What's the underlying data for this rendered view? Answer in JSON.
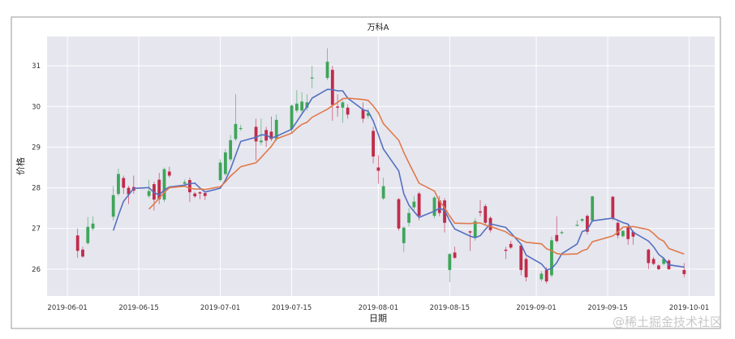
{
  "chart_data": {
    "type": "candlestick",
    "title": "万科A",
    "xlabel": "日期",
    "ylabel": "价格",
    "xlim": [
      "2019-05-28",
      "2019-10-06"
    ],
    "ylim": [
      25.34,
      31.72
    ],
    "yticks": [
      26,
      27,
      28,
      29,
      30,
      31
    ],
    "xticks": [
      "2019-06-01",
      "2019-06-15",
      "2019-07-01",
      "2019-07-15",
      "2019-08-01",
      "2019-08-15",
      "2019-09-01",
      "2019-09-15",
      "2019-10-01"
    ],
    "grid": true,
    "colors": {
      "up": "#3fa55a",
      "down": "#c02c4a",
      "background": "#e6e6ef",
      "grid": "#ffffff"
    },
    "moving_averages": [
      {
        "window": 5,
        "color": "#5470c0"
      },
      {
        "window": 10,
        "color": "#e07a4a"
      }
    ],
    "columns": [
      "date",
      "open",
      "high",
      "low",
      "close"
    ],
    "candles": [
      [
        "2019-06-03",
        26.83,
        27.0,
        26.28,
        26.45
      ],
      [
        "2019-06-04",
        26.48,
        26.55,
        26.28,
        26.31
      ],
      [
        "2019-06-05",
        26.64,
        27.28,
        26.6,
        27.04
      ],
      [
        "2019-06-06",
        27.0,
        27.3,
        26.95,
        27.12
      ],
      [
        "2019-06-10",
        27.29,
        28.04,
        27.2,
        27.82
      ],
      [
        "2019-06-11",
        27.85,
        28.47,
        27.8,
        28.34
      ],
      [
        "2019-06-12",
        28.24,
        28.3,
        27.85,
        28.0
      ],
      [
        "2019-06-13",
        28.0,
        28.05,
        27.6,
        27.84
      ],
      [
        "2019-06-14",
        28.02,
        28.3,
        27.85,
        27.93
      ],
      [
        "2019-06-17",
        27.8,
        28.2,
        27.75,
        27.92
      ],
      [
        "2019-06-18",
        28.09,
        28.15,
        27.44,
        27.71
      ],
      [
        "2019-06-19",
        28.2,
        28.37,
        27.6,
        27.72
      ],
      [
        "2019-06-20",
        27.71,
        28.5,
        27.65,
        28.46
      ],
      [
        "2019-06-21",
        28.4,
        28.52,
        28.25,
        28.3
      ],
      [
        "2019-06-24",
        28.1,
        28.2,
        28.05,
        28.14
      ],
      [
        "2019-06-25",
        28.19,
        28.25,
        27.65,
        27.89
      ],
      [
        "2019-06-26",
        27.86,
        27.9,
        27.75,
        27.79
      ],
      [
        "2019-06-27",
        27.89,
        27.92,
        27.72,
        27.86
      ],
      [
        "2019-06-28",
        27.87,
        27.9,
        27.7,
        27.8
      ],
      [
        "2019-07-01",
        28.19,
        28.7,
        28.15,
        28.62
      ],
      [
        "2019-07-02",
        28.34,
        28.95,
        28.3,
        28.87
      ],
      [
        "2019-07-03",
        28.7,
        29.3,
        28.65,
        29.17
      ],
      [
        "2019-07-04",
        29.2,
        30.3,
        29.15,
        29.57
      ],
      [
        "2019-07-05",
        29.45,
        29.55,
        29.4,
        29.47
      ],
      [
        "2019-07-08",
        29.5,
        29.7,
        28.67,
        29.14
      ],
      [
        "2019-07-09",
        29.12,
        29.7,
        29.05,
        29.16
      ],
      [
        "2019-07-10",
        29.42,
        29.5,
        29.0,
        29.16
      ],
      [
        "2019-07-11",
        29.38,
        29.75,
        29.15,
        29.2
      ],
      [
        "2019-07-12",
        29.2,
        29.8,
        29.15,
        29.67
      ],
      [
        "2019-07-15",
        29.44,
        30.05,
        29.35,
        30.02
      ],
      [
        "2019-07-16",
        29.9,
        30.4,
        29.85,
        30.07
      ],
      [
        "2019-07-17",
        29.9,
        30.35,
        29.85,
        30.12
      ],
      [
        "2019-07-18",
        29.97,
        30.3,
        29.9,
        30.1
      ],
      [
        "2019-07-19",
        30.7,
        31.0,
        30.45,
        30.71
      ],
      [
        "2019-07-22",
        30.7,
        31.43,
        30.65,
        31.1
      ],
      [
        "2019-07-23",
        30.9,
        31.0,
        29.65,
        30.04
      ],
      [
        "2019-07-24",
        30.0,
        30.3,
        29.75,
        29.97
      ],
      [
        "2019-07-25",
        29.97,
        30.15,
        29.6,
        30.1
      ],
      [
        "2019-07-26",
        29.97,
        30.05,
        29.7,
        29.8
      ],
      [
        "2019-07-29",
        29.92,
        30.1,
        29.6,
        29.7
      ],
      [
        "2019-07-30",
        29.77,
        29.95,
        29.7,
        29.84
      ],
      [
        "2019-07-31",
        29.4,
        29.5,
        28.6,
        28.77
      ],
      [
        "2019-08-01",
        28.5,
        28.8,
        28.1,
        28.42
      ],
      [
        "2019-08-02",
        27.74,
        28.25,
        27.7,
        28.04
      ],
      [
        "2019-08-05",
        27.72,
        27.75,
        26.95,
        27.0
      ],
      [
        "2019-08-06",
        26.64,
        27.05,
        26.42,
        27.02
      ],
      [
        "2019-08-07",
        27.14,
        27.5,
        27.05,
        27.38
      ],
      [
        "2019-08-08",
        27.52,
        27.8,
        27.45,
        27.66
      ],
      [
        "2019-08-09",
        27.86,
        27.9,
        27.2,
        27.31
      ],
      [
        "2019-08-12",
        27.31,
        27.8,
        27.25,
        27.76
      ],
      [
        "2019-08-13",
        27.69,
        27.8,
        27.3,
        27.38
      ],
      [
        "2019-08-14",
        27.69,
        27.75,
        26.9,
        27.14
      ],
      [
        "2019-08-15",
        25.98,
        26.4,
        25.68,
        26.37
      ],
      [
        "2019-08-16",
        26.41,
        26.55,
        26.25,
        26.28
      ],
      [
        "2019-08-19",
        26.93,
        26.95,
        26.45,
        26.9
      ],
      [
        "2019-08-20",
        26.78,
        27.25,
        26.7,
        27.18
      ],
      [
        "2019-08-21",
        27.42,
        27.7,
        27.3,
        27.39
      ],
      [
        "2019-08-22",
        27.55,
        27.6,
        27.1,
        27.14
      ],
      [
        "2019-08-23",
        27.26,
        27.3,
        26.9,
        26.96
      ],
      [
        "2019-08-26",
        26.48,
        26.55,
        26.25,
        26.45
      ],
      [
        "2019-08-27",
        26.62,
        26.7,
        26.5,
        26.53
      ],
      [
        "2019-08-29",
        26.58,
        26.6,
        25.85,
        25.98
      ],
      [
        "2019-08-30",
        26.25,
        26.3,
        25.7,
        25.8
      ],
      [
        "2019-09-02",
        25.75,
        25.95,
        25.7,
        25.89
      ],
      [
        "2019-09-03",
        25.98,
        26.05,
        25.65,
        25.7
      ],
      [
        "2019-09-04",
        25.85,
        26.8,
        25.8,
        26.71
      ],
      [
        "2019-09-05",
        26.84,
        27.3,
        26.65,
        26.69
      ],
      [
        "2019-09-06",
        26.89,
        26.95,
        26.85,
        26.91
      ],
      [
        "2019-09-09",
        27.08,
        27.2,
        27.05,
        27.09
      ],
      [
        "2019-09-10",
        27.19,
        27.25,
        27.15,
        27.23
      ],
      [
        "2019-09-11",
        27.31,
        27.35,
        26.85,
        26.92
      ],
      [
        "2019-09-12",
        27.19,
        27.8,
        27.15,
        27.79
      ],
      [
        "2019-09-16",
        27.78,
        27.8,
        27.2,
        27.24
      ],
      [
        "2019-09-17",
        27.14,
        27.2,
        26.75,
        26.83
      ],
      [
        "2019-09-18",
        26.81,
        26.96,
        26.78,
        26.94
      ],
      [
        "2019-09-19",
        27.04,
        27.1,
        26.6,
        26.74
      ],
      [
        "2019-09-20",
        26.92,
        26.95,
        26.6,
        26.8
      ],
      [
        "2019-09-23",
        26.48,
        26.5,
        26.0,
        26.15
      ],
      [
        "2019-09-24",
        26.25,
        26.3,
        26.1,
        26.13
      ],
      [
        "2019-09-25",
        26.09,
        26.12,
        25.98,
        26.0
      ],
      [
        "2019-09-26",
        26.13,
        26.3,
        26.1,
        26.25
      ],
      [
        "2019-09-27",
        26.21,
        26.25,
        25.98,
        26.0
      ],
      [
        "2019-09-30",
        25.98,
        26.15,
        25.8,
        25.88
      ]
    ]
  },
  "watermark": "@稀土掘金技术社区"
}
